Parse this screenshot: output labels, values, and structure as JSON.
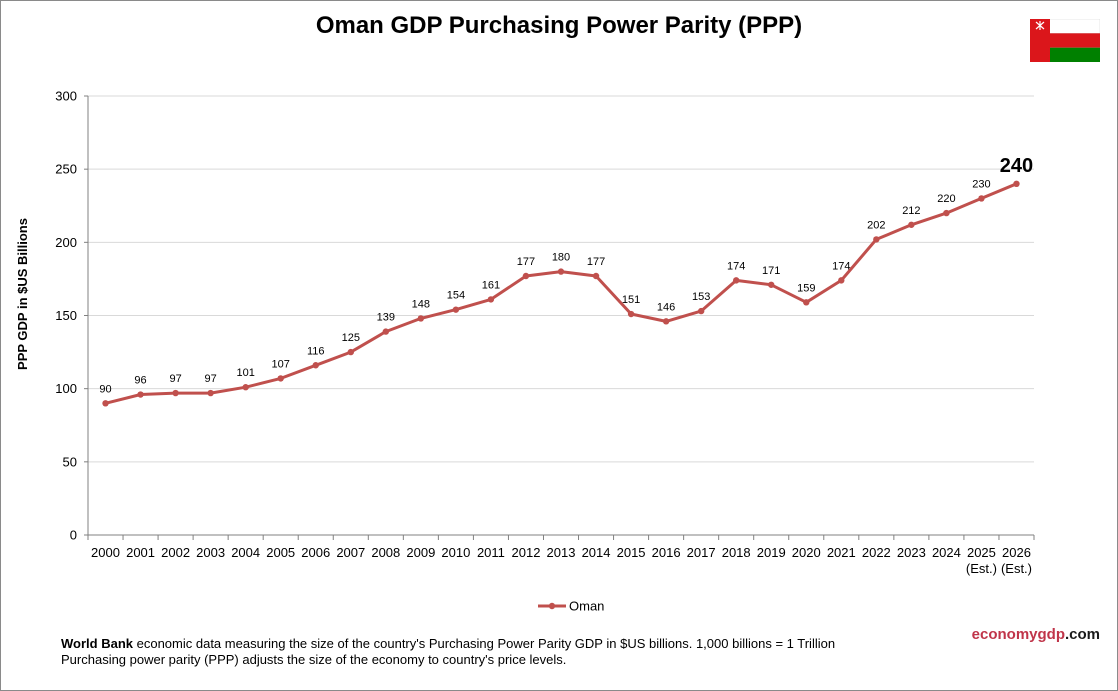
{
  "page": {
    "title": "Oman GDP Purchasing Power Parity (PPP)",
    "footnote_bold": "World Bank",
    "footnote_line1": " economic data measuring the size of the country's Purchasing Power Parity GDP in $US billions. 1,000 billions = 1 Trillion",
    "footnote_line2": "Purchasing power parity (PPP) adjusts the size of the economy to country's price levels.",
    "brand_part1": "economygdp",
    "brand_part2": ".com",
    "flag_icon": "oman-flag-icon"
  },
  "colors": {
    "series": "#c0504d",
    "grid": "#d9d9d9",
    "flag_red": "#db161b",
    "flag_green": "#008000",
    "flag_white": "#ffffff"
  },
  "chart_data": {
    "type": "line",
    "title": "Oman GDP Purchasing Power Parity (PPP)",
    "ylabel": "PPP GDP in $US Billions",
    "xlabel": "",
    "ylim": [
      0,
      300
    ],
    "yticks": [
      0,
      50,
      100,
      150,
      200,
      250,
      300
    ],
    "grid": true,
    "legend_position": "bottom",
    "categories": [
      "2000",
      "2001",
      "2002",
      "2003",
      "2004",
      "2005",
      "2006",
      "2007",
      "2008",
      "2009",
      "2010",
      "2011",
      "2012",
      "2013",
      "2014",
      "2015",
      "2016",
      "2017",
      "2018",
      "2019",
      "2020",
      "2021",
      "2022",
      "2023",
      "2024",
      "2025",
      "2026"
    ],
    "category_sublabels": [
      "",
      "",
      "",
      "",
      "",
      "",
      "",
      "",
      "",
      "",
      "",
      "",
      "",
      "",
      "",
      "",
      "",
      "",
      "",
      "",
      "",
      "",
      "",
      "",
      "",
      "(Est.)",
      "(Est.)"
    ],
    "series": [
      {
        "name": "Oman",
        "values": [
          90,
          96,
          97,
          97,
          101,
          107,
          116,
          125,
          139,
          148,
          154,
          161,
          177,
          180,
          177,
          151,
          146,
          153,
          174,
          171,
          159,
          174,
          202,
          212,
          220,
          230,
          240
        ],
        "data_labels": [
          "90",
          "96",
          "97",
          "97",
          "101",
          "107",
          "116",
          "125",
          "139",
          "148",
          "154",
          "161",
          "177",
          "180",
          "177",
          "151",
          "146",
          "153",
          "174",
          "171",
          "159",
          "174",
          "202",
          "212",
          "220",
          "230",
          "240"
        ]
      }
    ]
  }
}
